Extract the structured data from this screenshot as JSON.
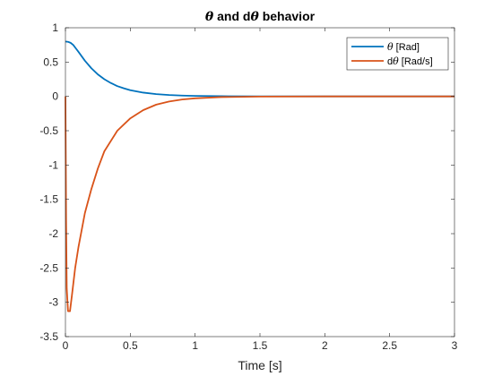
{
  "chart_data": {
    "type": "line",
    "title": {
      "symbol": "θ",
      "joiner": " and d",
      "symbol2": "θ",
      "suffix": "  behavior"
    },
    "xlabel": "Time [s]",
    "ylabel": "",
    "xlim": [
      0,
      3
    ],
    "ylim": [
      -3.5,
      1
    ],
    "xticks": [
      0,
      0.5,
      1,
      1.5,
      2,
      2.5,
      3
    ],
    "xtick_labels": [
      "0",
      "0.5",
      "1",
      "1.5",
      "2",
      "2.5",
      "3"
    ],
    "yticks": [
      1,
      0.5,
      0,
      -0.5,
      -1,
      -1.5,
      -2,
      -2.5,
      -3,
      -3.5
    ],
    "ytick_labels": [
      "1",
      "0.5",
      "0",
      "-0.5",
      "-1",
      "-1.5",
      "-2",
      "-2.5",
      "-3",
      "-3.5"
    ],
    "grid": false,
    "legend_position": "top-right",
    "series": [
      {
        "legend": {
          "prefix": "",
          "symbol": "θ",
          "suffix": " [Rad]"
        },
        "color": "#0072BD",
        "points": [
          [
            0,
            0.8
          ],
          [
            0.02,
            0.795
          ],
          [
            0.04,
            0.78
          ],
          [
            0.06,
            0.75
          ],
          [
            0.08,
            0.7
          ],
          [
            0.1,
            0.65
          ],
          [
            0.15,
            0.52
          ],
          [
            0.2,
            0.41
          ],
          [
            0.25,
            0.32
          ],
          [
            0.3,
            0.25
          ],
          [
            0.35,
            0.195
          ],
          [
            0.4,
            0.15
          ],
          [
            0.45,
            0.118
          ],
          [
            0.5,
            0.09
          ],
          [
            0.6,
            0.055
          ],
          [
            0.7,
            0.033
          ],
          [
            0.8,
            0.02
          ],
          [
            0.9,
            0.012
          ],
          [
            1.0,
            0.007
          ],
          [
            1.2,
            0.003
          ],
          [
            1.5,
            0.001
          ],
          [
            2.0,
            0
          ],
          [
            2.5,
            0
          ],
          [
            3.0,
            0
          ]
        ]
      },
      {
        "legend": {
          "prefix": "d",
          "symbol": "θ",
          "suffix": "  [Rad/s]"
        },
        "color": "#D95319",
        "points": [
          [
            0,
            0
          ],
          [
            0.005,
            -1.8
          ],
          [
            0.01,
            -2.8
          ],
          [
            0.02,
            -3.13
          ],
          [
            0.035,
            -3.13
          ],
          [
            0.05,
            -2.9
          ],
          [
            0.075,
            -2.5
          ],
          [
            0.1,
            -2.2
          ],
          [
            0.15,
            -1.7
          ],
          [
            0.2,
            -1.35
          ],
          [
            0.25,
            -1.05
          ],
          [
            0.3,
            -0.8
          ],
          [
            0.4,
            -0.5
          ],
          [
            0.5,
            -0.32
          ],
          [
            0.6,
            -0.2
          ],
          [
            0.7,
            -0.12
          ],
          [
            0.8,
            -0.075
          ],
          [
            0.9,
            -0.045
          ],
          [
            1.0,
            -0.028
          ],
          [
            1.2,
            -0.01
          ],
          [
            1.5,
            -0.003
          ],
          [
            2.0,
            0
          ],
          [
            2.5,
            0
          ],
          [
            3.0,
            0
          ]
        ]
      }
    ]
  }
}
